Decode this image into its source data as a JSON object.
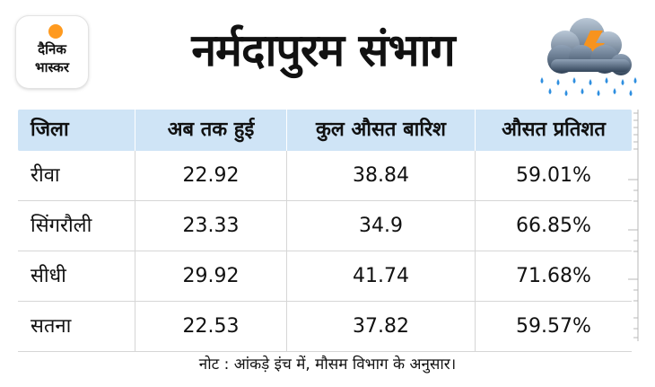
{
  "logo": {
    "line1": "दैनिक",
    "line2": "भास्कर"
  },
  "title": "नर्मदापुरम संभाग",
  "weather_icon": "storm-cloud-rain-icon",
  "colors": {
    "header_bg": "#cfe4f6",
    "logo_sun": "#ff9a1f",
    "rain": "#2f8fe0",
    "bolt": "#f7931e"
  },
  "table": {
    "headers": [
      "जिला",
      "अब तक हुई",
      "कुल औसत बारिश",
      "औसत प्रतिशत"
    ],
    "rows": [
      [
        "रीवा",
        "22.92",
        "38.84",
        "59.01%"
      ],
      [
        "सिंगरौली",
        "23.33",
        "34.9",
        "66.85%"
      ],
      [
        "सीधी",
        "29.92",
        "41.74",
        "71.68%"
      ],
      [
        "सतना",
        "22.53",
        "37.82",
        "59.57%"
      ]
    ]
  },
  "note": "नोट : आंकड़े इंच में, मौसम विभाग के अनुसार।"
}
